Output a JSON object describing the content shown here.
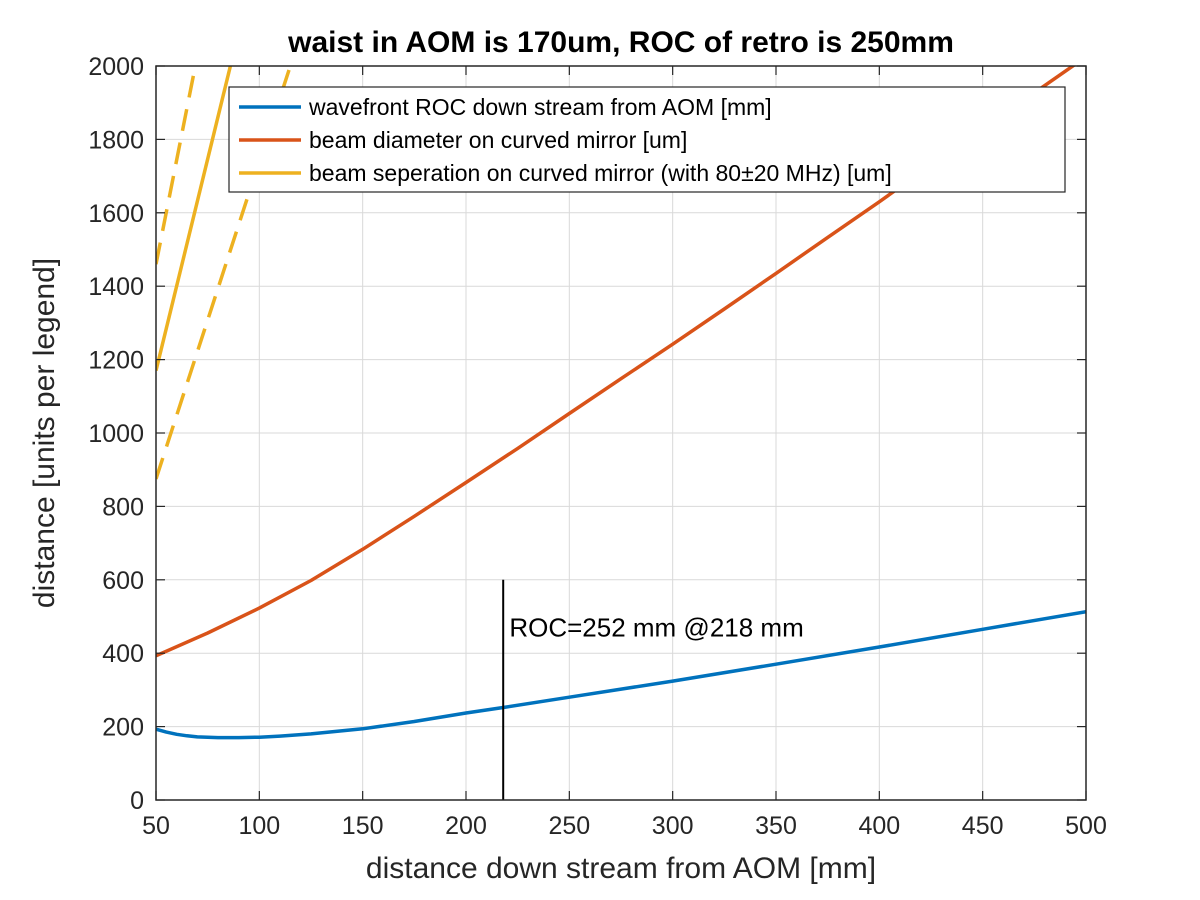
{
  "chart_data": {
    "type": "line",
    "title": "waist in AOM is 170um, ROC of retro is 250mm",
    "xlabel": "distance down stream from AOM [mm]",
    "ylabel": "distance [units per legend]",
    "xlim": [
      50,
      500
    ],
    "ylim": [
      0,
      2000
    ],
    "xticks": [
      50,
      100,
      150,
      200,
      250,
      300,
      350,
      400,
      450,
      500
    ],
    "yticks": [
      0,
      200,
      400,
      600,
      800,
      1000,
      1200,
      1400,
      1600,
      1800,
      2000
    ],
    "grid": true,
    "legend_position": "top-right",
    "colors": {
      "wavefront": "#0072BD",
      "diameter": "#D95319",
      "separation": "#EDB120",
      "axes": "#262626",
      "grid": "#d9d9d9",
      "annotation": "#000000"
    },
    "series": [
      {
        "name": "wavefront ROC down stream from AOM [mm]",
        "color": "#0072BD",
        "style": "solid",
        "x": [
          50,
          55,
          60,
          65,
          70,
          75,
          80,
          85,
          90,
          100,
          110,
          125,
          150,
          175,
          200,
          218,
          250,
          300,
          350,
          400,
          450,
          500
        ],
        "y": [
          193,
          185,
          179,
          175,
          172,
          171,
          170,
          170,
          170,
          171,
          174,
          180,
          194,
          214,
          237,
          252,
          280,
          324,
          370,
          417,
          465,
          513
        ]
      },
      {
        "name": "beam diameter on curved mirror [um]",
        "color": "#D95319",
        "style": "solid",
        "x": [
          50,
          75,
          100,
          125,
          150,
          175,
          200,
          225,
          250,
          275,
          300,
          325,
          350,
          375,
          400,
          425,
          450,
          475,
          500
        ],
        "y": [
          393,
          455,
          523,
          598,
          683,
          773,
          865,
          958,
          1053,
          1148,
          1242,
          1338,
          1435,
          1533,
          1630,
          1730,
          1828,
          1927,
          2025
        ]
      },
      {
        "name": "beam seperation on curved mirror (with 80±20 MHz) [um]",
        "color": "#EDB120",
        "style": "solid",
        "x": [
          50,
          86
        ],
        "y": [
          1170,
          2000
        ]
      },
      {
        "name": "",
        "color": "#EDB120",
        "style": "dashed",
        "x": [
          50,
          69
        ],
        "y": [
          1460,
          2000
        ]
      },
      {
        "name": "",
        "color": "#EDB120",
        "style": "dashed",
        "x": [
          50,
          115
        ],
        "y": [
          875,
          2000
        ]
      }
    ],
    "annotations": [
      {
        "text": "ROC=252 mm @218 mm",
        "x": 220,
        "y": 470,
        "vline_x": 218,
        "vline_y": [
          0,
          600
        ]
      }
    ]
  }
}
